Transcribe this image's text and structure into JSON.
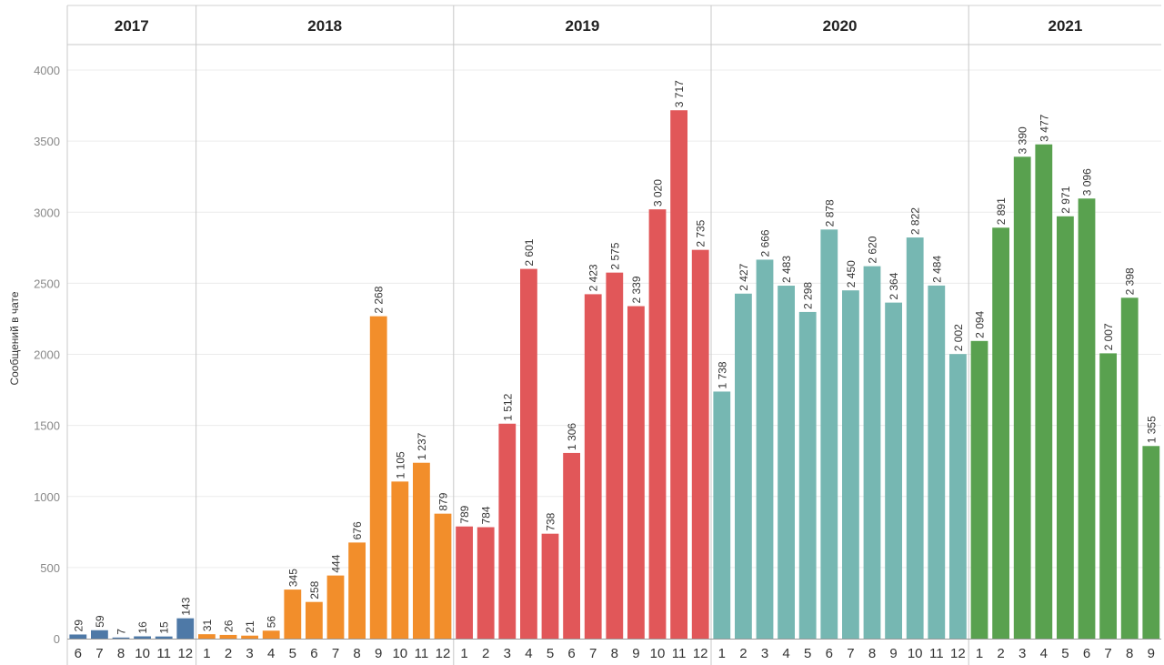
{
  "chart_data": {
    "type": "bar",
    "ylabel": "Сообщений в чате",
    "ylim": [
      0,
      4000
    ],
    "yticks": [
      0,
      500,
      1000,
      1500,
      2000,
      2500,
      3000,
      3500,
      4000
    ],
    "grid": true,
    "panels": [
      {
        "year": "2017",
        "color": "#4e79a7",
        "categories": [
          "6",
          "7",
          "8",
          "10",
          "11",
          "12"
        ],
        "values": [
          29,
          59,
          7,
          16,
          15,
          143
        ],
        "labels": [
          "29",
          "59",
          "7",
          "16",
          "15",
          "143"
        ]
      },
      {
        "year": "2018",
        "color": "#f28e2b",
        "categories": [
          "1",
          "2",
          "3",
          "4",
          "5",
          "6",
          "7",
          "8",
          "9",
          "10",
          "11",
          "12"
        ],
        "values": [
          31,
          26,
          21,
          56,
          345,
          258,
          444,
          676,
          2268,
          1105,
          1237,
          879
        ],
        "labels": [
          "31",
          "26",
          "21",
          "56",
          "345",
          "258",
          "444",
          "676",
          "2 268",
          "1 105",
          "1 237",
          "879"
        ]
      },
      {
        "year": "2019",
        "color": "#e15759",
        "categories": [
          "1",
          "2",
          "3",
          "4",
          "5",
          "6",
          "7",
          "8",
          "9",
          "10",
          "11",
          "12"
        ],
        "values": [
          789,
          784,
          1512,
          2601,
          738,
          1306,
          2423,
          2575,
          2339,
          3020,
          3717,
          2735
        ],
        "labels": [
          "789",
          "784",
          "1 512",
          "2 601",
          "738",
          "1 306",
          "2 423",
          "2 575",
          "2 339",
          "3 020",
          "3 717",
          "2 735"
        ]
      },
      {
        "year": "2020",
        "color": "#76b7b2",
        "categories": [
          "1",
          "2",
          "3",
          "4",
          "5",
          "6",
          "7",
          "8",
          "9",
          "10",
          "11",
          "12"
        ],
        "values": [
          1738,
          2427,
          2666,
          2483,
          2298,
          2878,
          2450,
          2620,
          2364,
          2822,
          2484,
          2002
        ],
        "labels": [
          "1 738",
          "2 427",
          "2 666",
          "2 483",
          "2 298",
          "2 878",
          "2 450",
          "2 620",
          "2 364",
          "2 822",
          "2 484",
          "2 002"
        ]
      },
      {
        "year": "2021",
        "color": "#59a14f",
        "categories": [
          "1",
          "2",
          "3",
          "4",
          "5",
          "6",
          "7",
          "8",
          "9"
        ],
        "values": [
          2094,
          2891,
          3390,
          3477,
          2971,
          3096,
          2007,
          2398,
          1355
        ],
        "labels": [
          "2 094",
          "2 891",
          "3 390",
          "3 477",
          "2 971",
          "3 096",
          "2 007",
          "2 398",
          "1 355"
        ]
      }
    ]
  }
}
